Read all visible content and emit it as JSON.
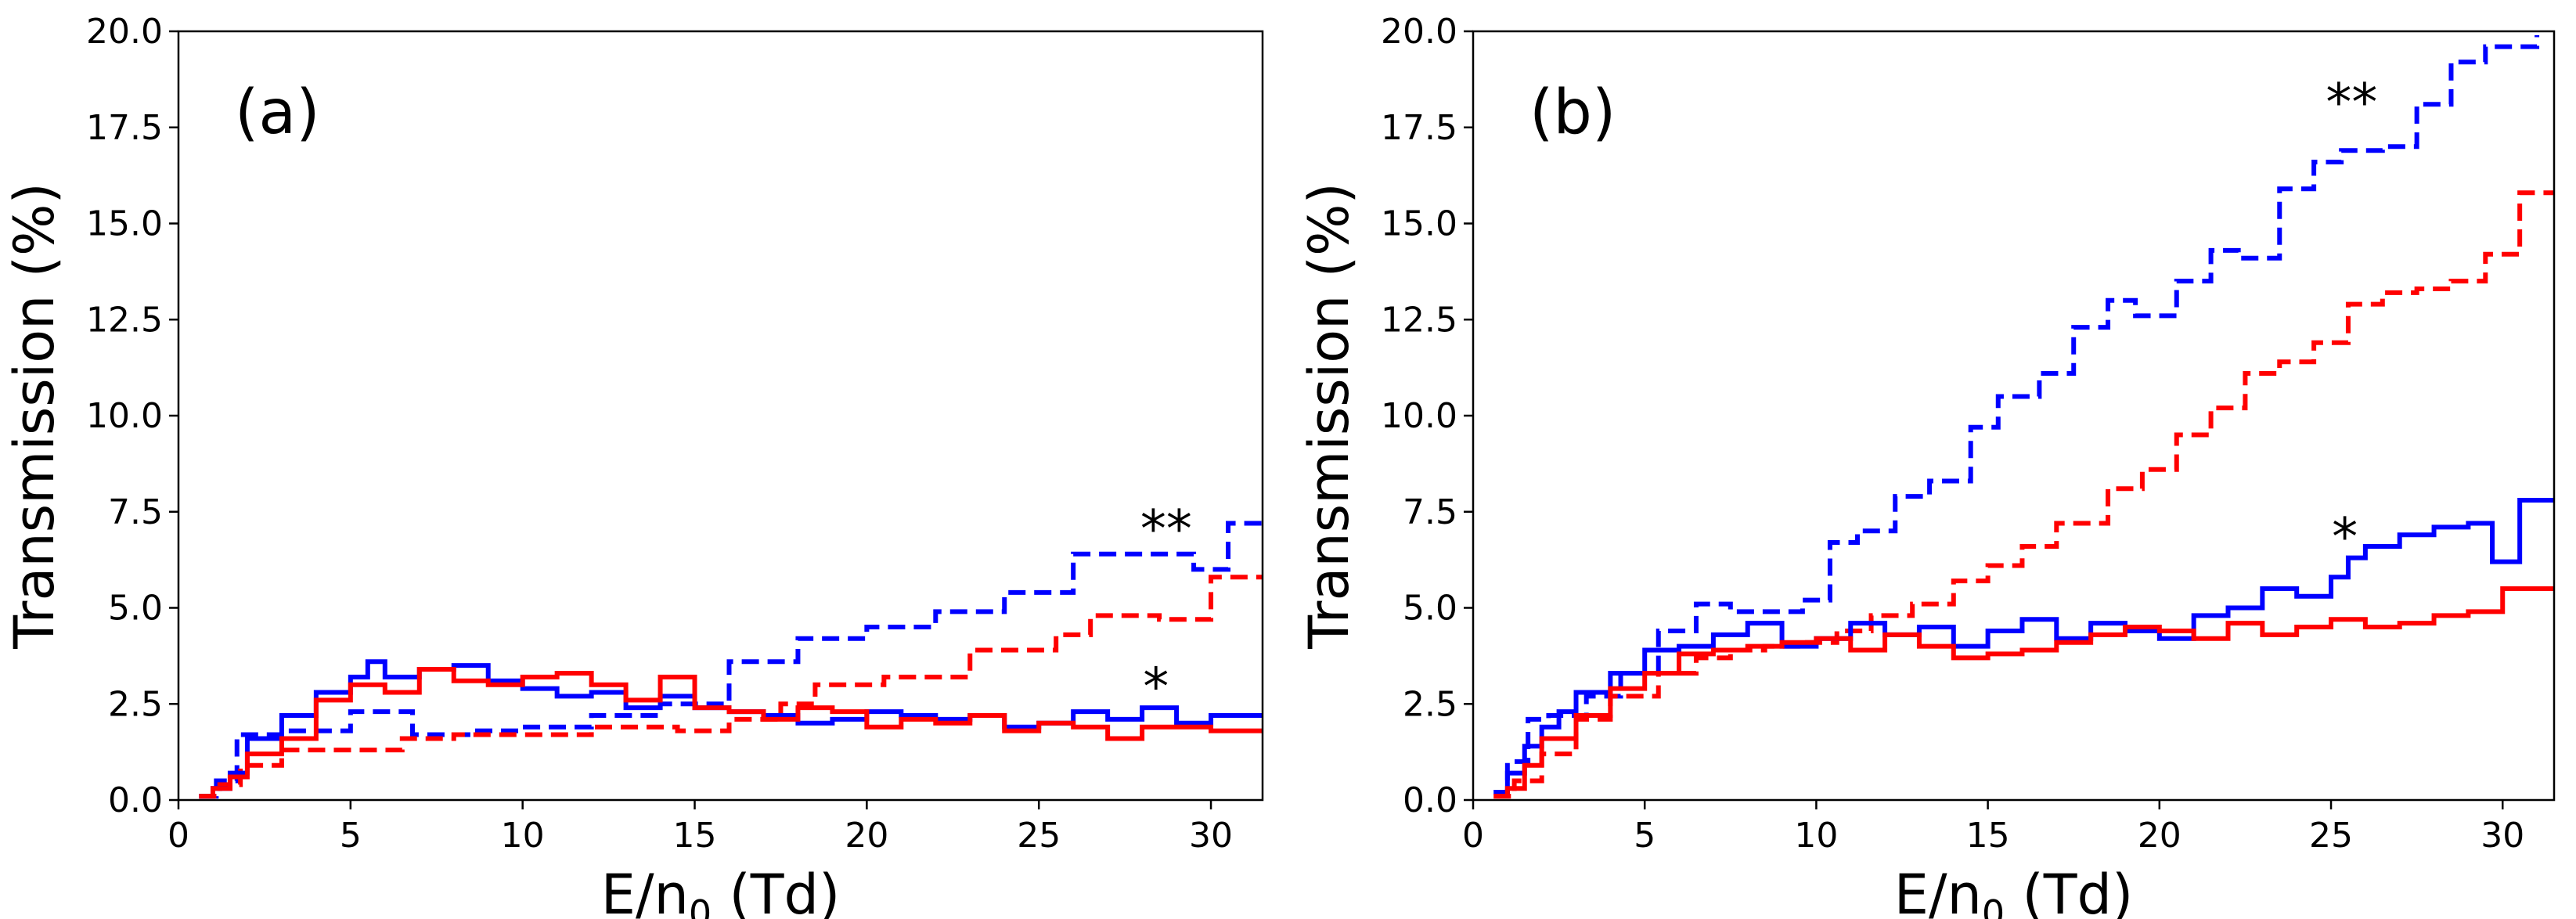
{
  "chart_data": [
    {
      "panel": "(a)",
      "type": "line",
      "step": true,
      "xlabel": "E/n",
      "xlabel_sub": "0",
      "xlabel_unit": " (Td)",
      "ylabel": "Transmission (%)",
      "xlim": [
        0,
        31.5
      ],
      "ylim": [
        0,
        20
      ],
      "xticks": [
        0,
        5,
        10,
        15,
        20,
        25,
        30
      ],
      "yticks": [
        "0.0",
        "2.5",
        "5.0",
        "7.5",
        "10.0",
        "12.5",
        "15.0",
        "17.5",
        "20.0"
      ],
      "annotations": [
        {
          "text": "**",
          "x": 28.7,
          "y": 7.2
        },
        {
          "text": "*",
          "x": 28.4,
          "y": 3.1
        }
      ],
      "series": [
        {
          "name": "blue-dashed",
          "color": "#0000ff",
          "style": "dashed",
          "x": [
            0.6,
            1.1,
            1.7,
            3.2,
            5.0,
            6.8,
            8.5,
            10.0,
            12.0,
            14.0,
            16.0,
            18.0,
            20.0,
            22.0,
            24.0,
            26.0,
            28.0,
            29.5,
            30.5,
            31.5
          ],
          "y": [
            0.1,
            0.5,
            1.7,
            1.8,
            2.3,
            1.7,
            1.8,
            1.9,
            2.2,
            2.5,
            3.6,
            4.2,
            4.5,
            4.9,
            5.4,
            6.4,
            6.4,
            6.0,
            7.2,
            7.2
          ]
        },
        {
          "name": "red-dashed",
          "color": "#ff0000",
          "style": "dashed",
          "x": [
            0.6,
            1.2,
            1.8,
            3.0,
            5.0,
            6.5,
            8.0,
            10.0,
            12.0,
            14.5,
            16.0,
            17.5,
            18.5,
            20.5,
            23.0,
            25.5,
            26.5,
            28.5,
            30.0,
            31.5
          ],
          "y": [
            0.1,
            0.4,
            0.9,
            1.3,
            1.3,
            1.6,
            1.7,
            1.7,
            1.9,
            1.8,
            2.1,
            2.5,
            3.0,
            3.2,
            3.9,
            4.3,
            4.8,
            4.7,
            5.8,
            5.8
          ]
        },
        {
          "name": "blue-solid",
          "color": "#0000ff",
          "style": "solid",
          "x": [
            0.6,
            1.0,
            1.5,
            2.0,
            3.0,
            4.0,
            5.0,
            5.5,
            6.0,
            7.0,
            8.0,
            9.0,
            10.0,
            11.0,
            12.0,
            13.0,
            14.0,
            15.0,
            16.0,
            17.0,
            18.0,
            19.0,
            20.0,
            21.0,
            22.0,
            23.0,
            24.0,
            25.0,
            26.0,
            27.0,
            28.0,
            29.0,
            30.0,
            31.5
          ],
          "y": [
            0.1,
            0.3,
            0.7,
            1.6,
            2.2,
            2.8,
            3.2,
            3.6,
            3.2,
            3.4,
            3.5,
            3.1,
            2.9,
            2.7,
            2.8,
            2.4,
            2.7,
            2.4,
            2.3,
            2.2,
            2.0,
            2.1,
            2.3,
            2.2,
            2.1,
            2.2,
            1.9,
            2.0,
            2.3,
            2.1,
            2.4,
            2.0,
            2.2,
            2.2
          ]
        },
        {
          "name": "red-solid",
          "color": "#ff0000",
          "style": "solid",
          "x": [
            0.6,
            1.0,
            1.5,
            2.0,
            3.0,
            4.0,
            5.0,
            6.0,
            7.0,
            8.0,
            9.0,
            10.0,
            11.0,
            12.0,
            13.0,
            14.0,
            15.0,
            16.0,
            17.0,
            18.0,
            19.0,
            20.0,
            21.0,
            22.0,
            23.0,
            24.0,
            25.0,
            26.0,
            27.0,
            28.0,
            29.0,
            30.0,
            31.5
          ],
          "y": [
            0.1,
            0.3,
            0.6,
            1.2,
            1.6,
            2.6,
            3.0,
            2.8,
            3.4,
            3.1,
            3.0,
            3.2,
            3.3,
            3.0,
            2.6,
            3.2,
            2.4,
            2.3,
            2.1,
            2.4,
            2.3,
            1.9,
            2.1,
            2.0,
            2.2,
            1.8,
            2.0,
            1.9,
            1.6,
            1.9,
            1.9,
            1.8,
            1.8
          ]
        }
      ]
    },
    {
      "panel": "(b)",
      "type": "line",
      "step": true,
      "xlabel": "E/n",
      "xlabel_sub": "0",
      "xlabel_unit": " (Td)",
      "ylabel": "Transmission (%)",
      "xlim": [
        0,
        31.5
      ],
      "ylim": [
        0,
        20
      ],
      "xticks": [
        0,
        5,
        10,
        15,
        20,
        25,
        30
      ],
      "yticks": [
        "0.0",
        "2.5",
        "5.0",
        "7.5",
        "10.0",
        "12.5",
        "15.0",
        "17.5",
        "20.0"
      ],
      "annotations": [
        {
          "text": "**",
          "x": 25.6,
          "y": 18.3
        },
        {
          "text": "*",
          "x": 25.4,
          "y": 7.0
        }
      ],
      "series": [
        {
          "name": "blue-dashed",
          "color": "#0000ff",
          "style": "dashed",
          "x": [
            0.6,
            1.0,
            1.6,
            2.2,
            3.3,
            4.3,
            5.4,
            6.5,
            7.5,
            8.6,
            9.6,
            10.4,
            11.2,
            12.3,
            13.3,
            14.5,
            15.3,
            16.5,
            17.5,
            18.5,
            19.3,
            20.5,
            21.5,
            22.3,
            23.5,
            24.5,
            25.3,
            26.5,
            27.5,
            28.5,
            29.5,
            31.0
          ],
          "y": [
            0.2,
            1.0,
            2.1,
            2.2,
            2.7,
            3.3,
            4.4,
            5.1,
            4.9,
            4.9,
            5.2,
            6.7,
            7.0,
            7.9,
            8.3,
            9.7,
            10.5,
            11.1,
            12.3,
            13.0,
            12.6,
            13.5,
            14.3,
            14.1,
            15.9,
            16.6,
            16.9,
            17.0,
            18.1,
            19.2,
            19.6,
            19.9
          ]
        },
        {
          "name": "red-dashed",
          "color": "#ff0000",
          "style": "dashed",
          "x": [
            0.6,
            1.2,
            2.0,
            3.0,
            4.0,
            5.4,
            6.5,
            7.5,
            8.5,
            9.6,
            10.6,
            11.6,
            12.8,
            14.0,
            15.0,
            16.0,
            17.0,
            18.5,
            19.5,
            20.5,
            21.5,
            22.5,
            23.5,
            24.5,
            25.5,
            26.5,
            27.5,
            28.5,
            29.5,
            30.5,
            31.5
          ],
          "y": [
            0.1,
            0.5,
            1.2,
            2.1,
            2.7,
            3.3,
            3.7,
            3.9,
            4.0,
            4.1,
            4.4,
            4.8,
            5.1,
            5.7,
            6.1,
            6.6,
            7.2,
            8.1,
            8.6,
            9.5,
            10.2,
            11.1,
            11.4,
            11.9,
            12.9,
            13.2,
            13.3,
            13.5,
            14.2,
            15.8,
            15.8
          ]
        },
        {
          "name": "blue-solid",
          "color": "#0000ff",
          "style": "solid",
          "x": [
            0.6,
            1.0,
            1.5,
            2.0,
            2.5,
            3.0,
            4.0,
            5.0,
            6.0,
            7.0,
            8.0,
            9.0,
            10.0,
            11.0,
            12.0,
            13.0,
            14.0,
            15.0,
            16.0,
            17.0,
            18.0,
            19.0,
            20.0,
            21.0,
            22.0,
            23.0,
            24.0,
            25.0,
            25.5,
            26.0,
            27.0,
            28.0,
            29.0,
            29.7,
            30.5,
            31.5
          ],
          "y": [
            0.2,
            0.7,
            1.4,
            1.9,
            2.3,
            2.8,
            3.3,
            3.9,
            4.0,
            4.3,
            4.6,
            4.0,
            4.2,
            4.6,
            4.3,
            4.5,
            4.0,
            4.4,
            4.7,
            4.2,
            4.6,
            4.4,
            4.2,
            4.8,
            5.0,
            5.5,
            5.3,
            5.8,
            6.3,
            6.6,
            6.9,
            7.1,
            7.2,
            6.2,
            7.8,
            7.8
          ]
        },
        {
          "name": "red-solid",
          "color": "#ff0000",
          "style": "solid",
          "x": [
            0.6,
            1.0,
            1.5,
            2.0,
            3.0,
            4.0,
            5.0,
            6.0,
            7.0,
            8.0,
            9.0,
            10.0,
            11.0,
            12.0,
            13.0,
            14.0,
            15.0,
            16.0,
            17.0,
            18.0,
            19.0,
            20.0,
            21.0,
            22.0,
            23.0,
            24.0,
            25.0,
            26.0,
            27.0,
            28.0,
            29.0,
            30.0,
            31.5
          ],
          "y": [
            0.1,
            0.3,
            0.9,
            1.6,
            2.2,
            2.9,
            3.3,
            3.8,
            3.9,
            4.0,
            4.1,
            4.2,
            3.9,
            4.3,
            4.0,
            3.7,
            3.8,
            3.9,
            4.1,
            4.3,
            4.5,
            4.4,
            4.2,
            4.6,
            4.3,
            4.5,
            4.7,
            4.5,
            4.6,
            4.8,
            4.9,
            5.5,
            5.5
          ]
        }
      ]
    }
  ]
}
